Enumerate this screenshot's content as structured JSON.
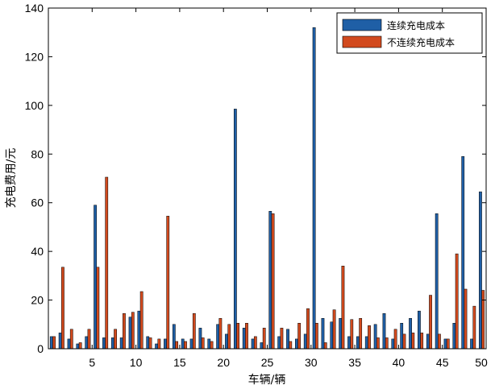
{
  "chart_data": {
    "type": "bar",
    "xlabel": "车辆/辆",
    "ylabel": "充电费用/元",
    "xlim": [
      0,
      50
    ],
    "ylim": [
      0,
      140
    ],
    "xticks": [
      5,
      10,
      15,
      20,
      25,
      30,
      35,
      40,
      45,
      50
    ],
    "yticks": [
      0,
      20,
      40,
      60,
      80,
      100,
      120,
      140
    ],
    "legend_position": "top-right",
    "grid": false,
    "categories": [
      1,
      2,
      3,
      4,
      5,
      6,
      7,
      8,
      9,
      10,
      11,
      12,
      13,
      14,
      15,
      16,
      17,
      18,
      19,
      20,
      21,
      22,
      23,
      24,
      25,
      26,
      27,
      28,
      29,
      30,
      31,
      32,
      33,
      34,
      35,
      36,
      37,
      38,
      39,
      40,
      41,
      42,
      43,
      44,
      45,
      46,
      47,
      48,
      49,
      50
    ],
    "series": [
      {
        "name": "连续充电成本",
        "color": "#1f5fa6",
        "values": [
          5,
          6.5,
          4,
          2,
          5,
          59,
          4.5,
          4.5,
          4.5,
          13,
          15.5,
          5,
          2,
          4,
          10,
          4,
          4,
          8.5,
          4,
          10,
          6,
          98.5,
          8.5,
          4,
          2.5,
          56.5,
          5,
          8,
          4,
          6,
          132,
          12.5,
          11,
          12.5,
          5,
          5,
          5,
          10,
          14.5,
          4,
          10.5,
          12.5,
          15.5,
          6,
          55.5,
          4,
          10.5,
          79,
          4,
          64.5
        ]
      },
      {
        "name": "不连续充电成本",
        "color": "#d24a1e",
        "values": [
          5,
          33.5,
          8,
          2.5,
          8,
          33.5,
          70.5,
          8,
          14.5,
          15,
          23.5,
          4.5,
          4,
          54.5,
          3,
          3,
          14.5,
          4.5,
          3,
          12.5,
          10,
          10.5,
          10.5,
          5,
          8.5,
          55.5,
          8.5,
          3,
          10.5,
          16.5,
          10.5,
          2.5,
          16,
          34,
          12,
          12.5,
          9.5,
          4.5,
          4.5,
          8,
          6,
          6.5,
          6.5,
          22,
          6,
          4,
          39,
          24.5,
          17.5,
          24
        ]
      }
    ]
  }
}
